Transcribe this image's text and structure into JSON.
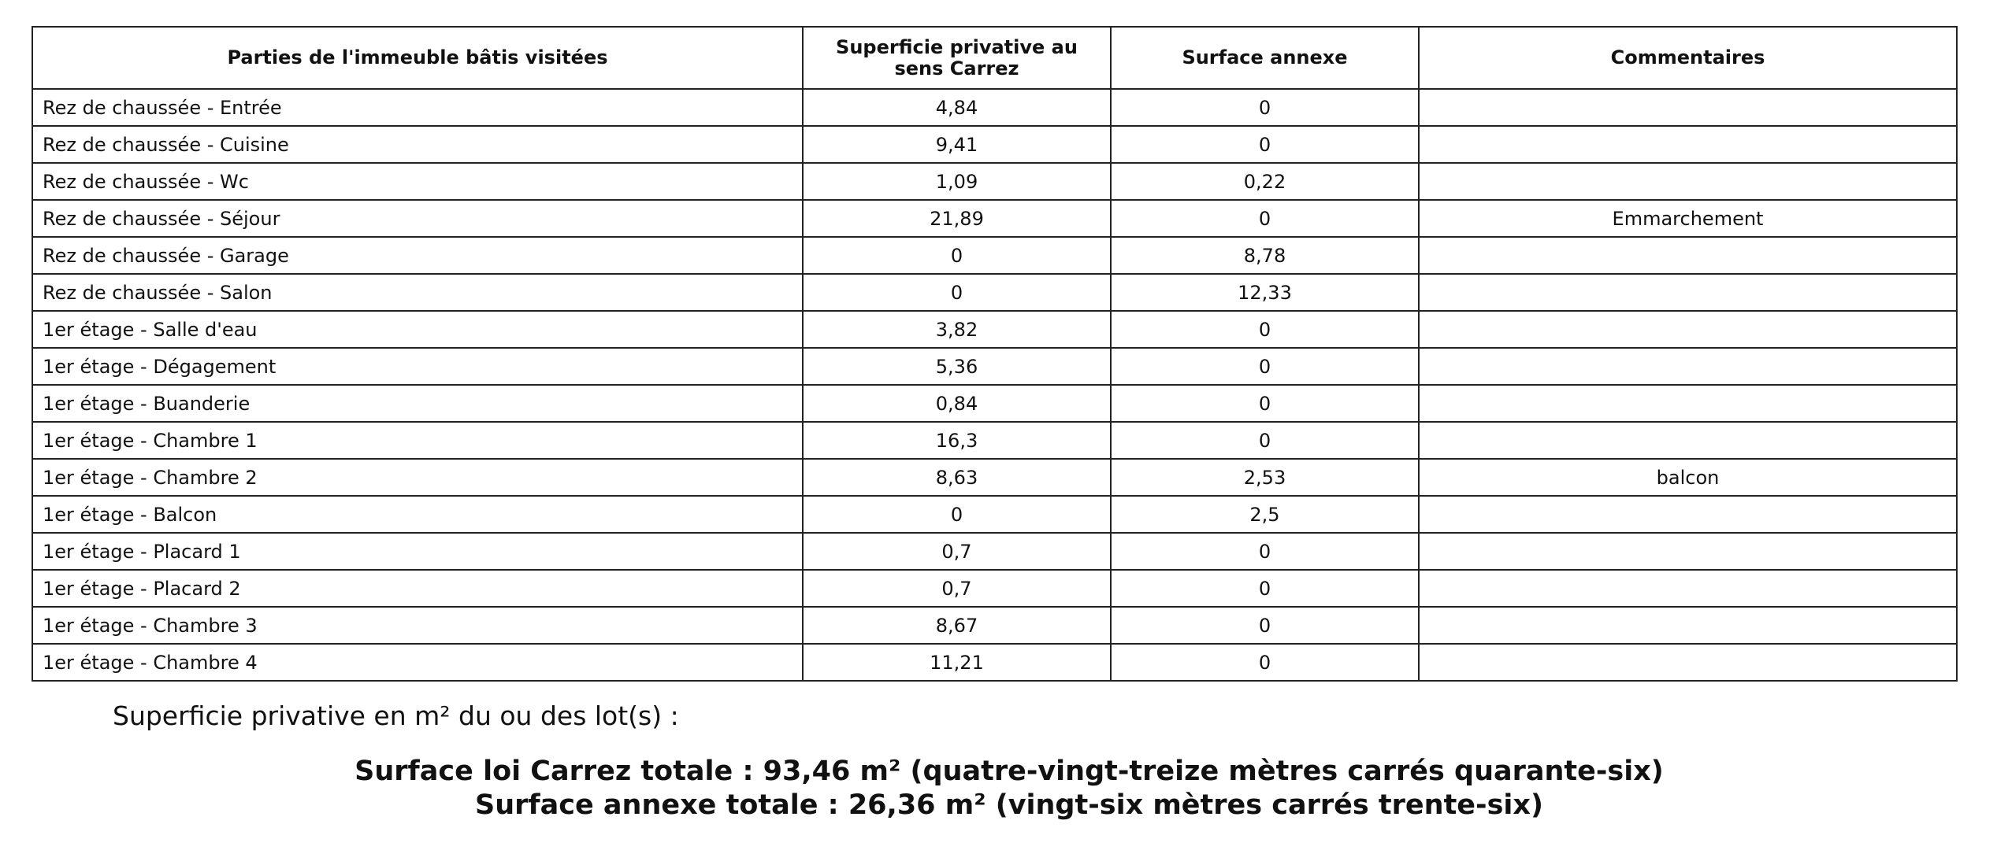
{
  "table": {
    "headers": [
      "Parties de l'immeuble bâtis visitées",
      "Superficie privative au sens Carrez",
      "Surface annexe",
      "Commentaires"
    ],
    "rows": [
      [
        "Rez de chaussée - Entrée",
        "4,84",
        "0",
        null
      ],
      [
        "Rez de chaussée - Cuisine",
        "9,41",
        "0",
        null
      ],
      [
        "Rez de chaussée - Wc",
        "1,09",
        "0,22",
        null
      ],
      [
        "Rez de chaussée - Séjour",
        "21,89",
        "0",
        "Emmarchement"
      ],
      [
        "Rez de chaussée - Garage",
        "0",
        "8,78",
        null
      ],
      [
        "Rez de chaussée - Salon",
        "0",
        "12,33",
        null
      ],
      [
        "1er étage - Salle d'eau",
        "3,82",
        "0",
        null
      ],
      [
        "1er étage - Dégagement",
        "5,36",
        "0",
        null
      ],
      [
        "1er étage - Buanderie",
        "0,84",
        "0",
        null
      ],
      [
        "1er étage - Chambre 1",
        "16,3",
        "0",
        null
      ],
      [
        "1er étage - Chambre 2",
        "8,63",
        "2,53",
        "balcon"
      ],
      [
        "1er étage - Balcon",
        "0",
        "2,5",
        null
      ],
      [
        "1er étage - Placard 1",
        "0,7",
        "0",
        null
      ],
      [
        "1er étage - Placard 2",
        "0,7",
        "0",
        null
      ],
      [
        "1er étage - Chambre 3",
        "8,67",
        "0",
        null
      ],
      [
        "1er étage - Chambre 4",
        "11,21",
        "0",
        null
      ]
    ]
  },
  "summary": {
    "intro": "Superficie privative en m² du ou des lot(s) :",
    "carrez_total": "Surface loi Carrez totale : 93,46 m² (quatre-vingt-treize mètres carrés quarante-six)",
    "annexe_total": "Surface annexe totale : 26,36 m² (vingt-six mètres carrés trente-six)"
  }
}
